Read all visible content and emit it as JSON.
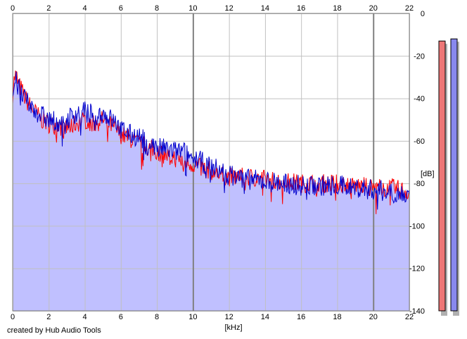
{
  "chart_data": {
    "type": "area",
    "title": "",
    "xlabel": "[kHz]",
    "ylabel": "[dB]",
    "xlim": [
      0,
      22
    ],
    "ylim": [
      -140,
      0
    ],
    "x_ticks": [
      0,
      2,
      4,
      6,
      8,
      10,
      12,
      14,
      16,
      18,
      20,
      22
    ],
    "y_ticks": [
      0,
      -20,
      -40,
      -60,
      -80,
      -100,
      -120,
      -140
    ],
    "y_tick_labels": [
      "0",
      "-20",
      "-40",
      "-60",
      "-80",
      "-100",
      "-120",
      "-140"
    ],
    "grid": true,
    "legend": "none",
    "colors": {
      "fill": "#c0c0ff",
      "channel_a": "#ff0000",
      "channel_b": "#0000cc",
      "grid_minor": "#c0c0c0",
      "grid_major": "#808080",
      "meter_left": "#ee7777",
      "meter_right": "#8888ee"
    },
    "series": [
      {
        "x": [
          0,
          0.1,
          0.2,
          0.3,
          0.5,
          0.7,
          1.0,
          1.3,
          1.6,
          2.0,
          2.5,
          3.0,
          3.5,
          4.0,
          4.5,
          5.0,
          5.5,
          6.0,
          6.5,
          7.0,
          7.5,
          8.0,
          8.5,
          9.0,
          9.5,
          10.0,
          10.5,
          11.0,
          11.5,
          12.0,
          13.0,
          14.0,
          15.0,
          16.0,
          17.0,
          18.0,
          19.0,
          20.0,
          21.0,
          22.0
        ],
        "values": [
          -38,
          -30,
          -29,
          -33,
          -36,
          -40,
          -44,
          -47,
          -50,
          -52,
          -53,
          -54,
          -52,
          -50,
          -52,
          -50,
          -53,
          -57,
          -59,
          -61,
          -63,
          -65,
          -67,
          -68,
          -70,
          -71,
          -73,
          -74,
          -76,
          -77,
          -77,
          -78,
          -79,
          -80,
          -80,
          -80,
          -81,
          -82,
          -82,
          -84
        ]
      },
      {
        "x": [
          0,
          0.1,
          0.2,
          0.3,
          0.5,
          0.7,
          1.0,
          1.3,
          1.6,
          2.0,
          2.5,
          3.0,
          3.5,
          4.0,
          4.5,
          5.0,
          5.5,
          6.0,
          6.5,
          7.0,
          7.5,
          8.0,
          8.5,
          9.0,
          9.5,
          10.0,
          10.5,
          11.0,
          11.5,
          12.0,
          13.0,
          14.0,
          15.0,
          16.0,
          17.0,
          18.0,
          19.0,
          20.0,
          21.0,
          22.0
        ],
        "values": [
          -40,
          -33,
          -32,
          -35,
          -38,
          -41,
          -44,
          -46,
          -48,
          -50,
          -51,
          -50,
          -47,
          -46,
          -48,
          -47,
          -50,
          -54,
          -57,
          -58,
          -61,
          -63,
          -64,
          -65,
          -65,
          -68,
          -70,
          -72,
          -74,
          -76,
          -78,
          -79,
          -80,
          -81,
          -81,
          -81,
          -82,
          -83,
          -84,
          -86
        ]
      }
    ],
    "meters": {
      "left_db": -13,
      "right_db": -12
    }
  },
  "footer": {
    "credit": "created by Hub Audio Tools"
  }
}
